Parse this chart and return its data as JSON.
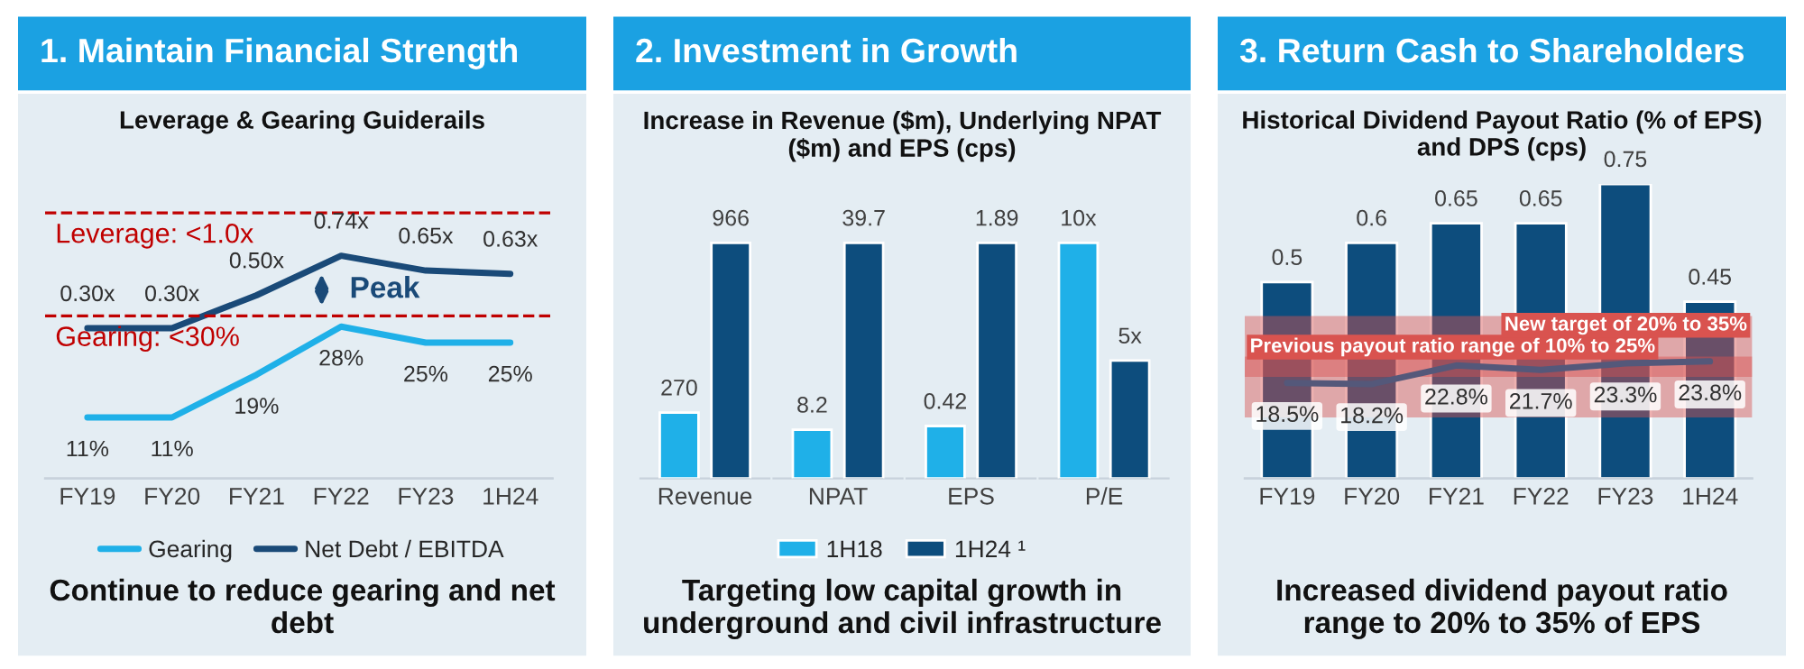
{
  "chart_data": [
    {
      "type": "line",
      "title": "1. Maintain Financial Strength",
      "subtitle": "Leverage & Gearing Guiderails",
      "categories": [
        "FY19",
        "FY20",
        "FY21",
        "FY22",
        "FY23",
        "1H24"
      ],
      "series": [
        {
          "name": "Gearing",
          "color": "#1fb0e8",
          "axis": "y2",
          "values": [
            11,
            11,
            19,
            28,
            25,
            25
          ],
          "value_labels": [
            "11%",
            "11%",
            "19%",
            "28%",
            "25%",
            "25%"
          ]
        },
        {
          "name": "Net Debt / EBITDA",
          "color": "#1a4a78",
          "values": [
            0.3,
            0.3,
            0.5,
            0.74,
            0.65,
            0.63
          ],
          "value_labels": [
            "0.30x",
            "0.30x",
            "0.50x",
            "0.74x",
            "0.65x",
            "0.63x"
          ]
        }
      ],
      "tick_labels": "x",
      "legend": "bottom",
      "ref_lines": [
        {
          "axis": "y",
          "value": 1.0,
          "label": "Leverage: <1.0x",
          "color": "#c00000",
          "line_style": "dashed"
        },
        {
          "axis": "y2",
          "value": 30,
          "label": "Gearing: <30%",
          "color": "#c00000",
          "line_style": "dashed"
        }
      ],
      "annotations": [
        "Peak",
        "Continue to reduce gearing and net debt"
      ]
    },
    {
      "type": "bar",
      "title": "2. Investment in Growth",
      "subtitle": "Increase in Revenue ($m), Underlying NPAT ($m) and EPS (cps)",
      "categories": [
        "Revenue"
      ],
      "series": [
        {
          "name": "1H18",
          "color": "#1fb0e8",
          "values": [
            270
          ]
        },
        {
          "name": "1H24 ¹",
          "color": "#0d4d7d",
          "values": [
            966
          ]
        }
      ],
      "tick_labels": "x",
      "data_labels": true,
      "legend": "bottom",
      "annotations": [
        "Targeting low capital growth in underground and civil infrastructure"
      ]
    },
    {
      "type": "bar",
      "categories": [
        "NPAT"
      ],
      "series": [
        {
          "color": "#1fb0e8",
          "values": [
            8.2
          ]
        },
        {
          "color": "#0d4d7d",
          "values": [
            39.7
          ]
        }
      ],
      "tick_labels": "x",
      "data_labels": true
    },
    {
      "type": "bar",
      "categories": [
        "EPS"
      ],
      "series": [
        {
          "color": "#1fb0e8",
          "values": [
            0.42
          ]
        },
        {
          "color": "#0d4d7d",
          "values": [
            1.89
          ]
        }
      ],
      "tick_labels": "x",
      "data_labels": true
    },
    {
      "type": "bar",
      "categories": [
        "P/E"
      ],
      "series": [
        {
          "color": "#1fb0e8",
          "values": [
            10
          ],
          "value_labels": [
            "10x"
          ]
        },
        {
          "color": "#0d4d7d",
          "values": [
            5
          ],
          "value_labels": [
            "5x"
          ]
        }
      ],
      "tick_labels": "x"
    },
    {
      "type": "bar",
      "title": "3. Return Cash to Shareholders",
      "subtitle": "Historical Dividend Payout Ratio (% of EPS) and DPS (cps)",
      "categories": [
        "FY19",
        "FY20",
        "FY21",
        "FY22",
        "FY23",
        "1H24"
      ],
      "series": [
        {
          "color": "#0d4d7d",
          "values": [
            0.5,
            0.6,
            0.65,
            0.65,
            0.75,
            0.45
          ],
          "value_labels": [
            "0.5",
            "0.6",
            "0.65",
            "0.65",
            "0.75",
            "0.45"
          ]
        },
        {
          "type": "line",
          "color": "#54587a",
          "axis": "y2",
          "values": [
            18.5,
            18.2,
            22.8,
            21.7,
            23.3,
            23.8
          ],
          "value_labels": [
            "18.5%",
            "18.2%",
            "22.8%",
            "21.7%",
            "23.3%",
            "23.8%"
          ]
        }
      ],
      "tick_labels": "x",
      "bands": [
        {
          "axis": "y2",
          "from": 10,
          "to": 25,
          "label": "Previous payout ratio range of 10% to 25%",
          "color": "#d9534f"
        },
        {
          "axis": "y2",
          "from": 20,
          "to": 35,
          "label": "New target of 20% to 35%",
          "color": "#d9534f"
        }
      ],
      "annotations": [
        "Increased dividend payout ratio range to 20% to 35% of EPS"
      ]
    }
  ]
}
